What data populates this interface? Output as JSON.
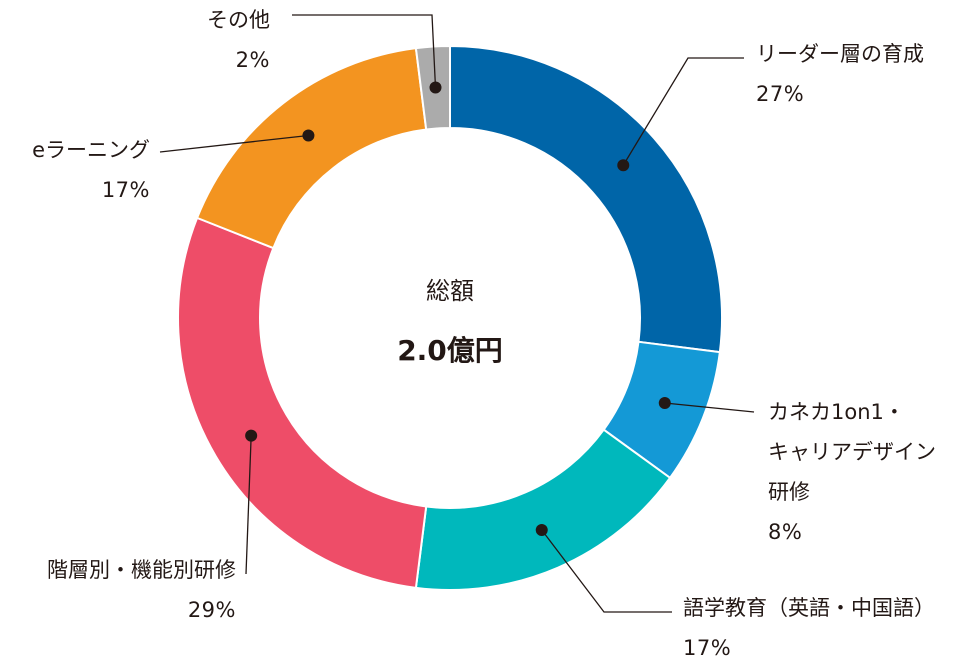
{
  "chart_data": {
    "type": "pie",
    "center": {
      "title": "総額",
      "total": "2.0億円"
    },
    "slices": [
      {
        "label_lines": [
          "リーダー層の育成"
        ],
        "value": 27,
        "value_label": "27%",
        "color": "#0065A8"
      },
      {
        "label_lines": [
          "カネカ1on1・",
          "キャリアデザイン",
          "研修"
        ],
        "value": 8,
        "value_label": "8%",
        "color": "#1499D6"
      },
      {
        "label_lines": [
          "語学教育（英語・中国語）"
        ],
        "value": 17,
        "value_label": "17%",
        "color": "#00B8BC"
      },
      {
        "label_lines": [
          "階層別・機能別研修"
        ],
        "value": 29,
        "value_label": "29%",
        "color": "#EE4D68"
      },
      {
        "label_lines": [
          "eラーニング"
        ],
        "value": 17,
        "value_label": "17%",
        "color": "#F39420"
      },
      {
        "label_lines": [
          "その他"
        ],
        "value": 2,
        "value_label": "2%",
        "color": "#ABABAB"
      }
    ]
  }
}
